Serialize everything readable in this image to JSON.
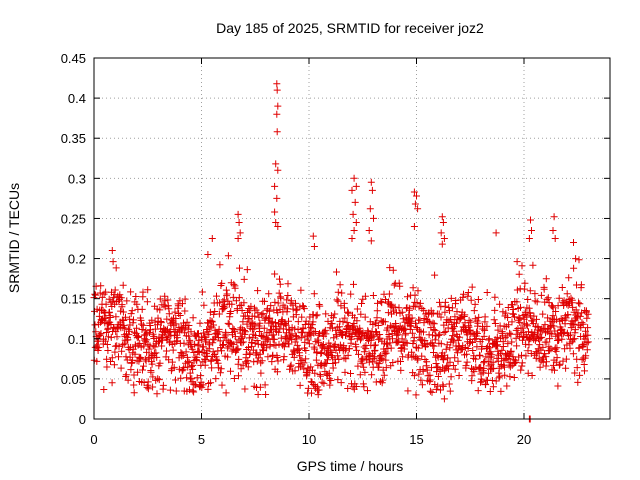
{
  "chart_data": {
    "type": "scatter",
    "title": "Day 185 of 2025, SRMTID for receiver joz2",
    "xlabel": "GPS time / hours",
    "ylabel": "SRMTID / TECUs",
    "xlim": [
      0,
      24
    ],
    "ylim": [
      0,
      0.45
    ],
    "xticks": [
      0,
      5,
      10,
      15,
      20
    ],
    "xtick_labels": [
      "0",
      "5",
      "10",
      "15",
      "20"
    ],
    "yticks": [
      0,
      0.05,
      0.1,
      0.15,
      0.2,
      0.25,
      0.3,
      0.35,
      0.4,
      0.45
    ],
    "ytick_labels": [
      "0",
      "0.05",
      "0.1",
      "0.15",
      "0.2",
      "0.25",
      "0.3",
      "0.35",
      "0.4",
      "0.45"
    ],
    "grid": true,
    "marker": "+",
    "color": "#e00000",
    "baseline": 0.1,
    "spread": 0.03,
    "data_range": [
      0,
      23
    ],
    "high_points": [
      {
        "x": 8.5,
        "y": 0.418
      },
      {
        "x": 8.52,
        "y": 0.41
      },
      {
        "x": 8.55,
        "y": 0.39
      },
      {
        "x": 8.5,
        "y": 0.38
      },
      {
        "x": 8.52,
        "y": 0.358
      },
      {
        "x": 8.45,
        "y": 0.318
      },
      {
        "x": 8.55,
        "y": 0.31
      },
      {
        "x": 8.4,
        "y": 0.29
      },
      {
        "x": 8.5,
        "y": 0.275
      },
      {
        "x": 8.4,
        "y": 0.258
      },
      {
        "x": 8.45,
        "y": 0.245
      },
      {
        "x": 8.55,
        "y": 0.24
      },
      {
        "x": 6.7,
        "y": 0.255
      },
      {
        "x": 6.75,
        "y": 0.245
      },
      {
        "x": 6.8,
        "y": 0.232
      },
      {
        "x": 6.7,
        "y": 0.225
      },
      {
        "x": 5.5,
        "y": 0.225
      },
      {
        "x": 5.3,
        "y": 0.205
      },
      {
        "x": 12.1,
        "y": 0.3
      },
      {
        "x": 12.2,
        "y": 0.29
      },
      {
        "x": 12.0,
        "y": 0.285
      },
      {
        "x": 12.15,
        "y": 0.27
      },
      {
        "x": 12.05,
        "y": 0.255
      },
      {
        "x": 12.2,
        "y": 0.245
      },
      {
        "x": 12.1,
        "y": 0.235
      },
      {
        "x": 12.0,
        "y": 0.225
      },
      {
        "x": 12.9,
        "y": 0.295
      },
      {
        "x": 12.95,
        "y": 0.285
      },
      {
        "x": 12.85,
        "y": 0.262
      },
      {
        "x": 13.0,
        "y": 0.25
      },
      {
        "x": 12.8,
        "y": 0.235
      },
      {
        "x": 12.9,
        "y": 0.222
      },
      {
        "x": 10.2,
        "y": 0.228
      },
      {
        "x": 10.25,
        "y": 0.215
      },
      {
        "x": 14.9,
        "y": 0.283
      },
      {
        "x": 15.0,
        "y": 0.278
      },
      {
        "x": 14.95,
        "y": 0.268
      },
      {
        "x": 15.05,
        "y": 0.262
      },
      {
        "x": 14.9,
        "y": 0.24
      },
      {
        "x": 16.2,
        "y": 0.252
      },
      {
        "x": 16.25,
        "y": 0.245
      },
      {
        "x": 16.15,
        "y": 0.232
      },
      {
        "x": 16.3,
        "y": 0.225
      },
      {
        "x": 16.2,
        "y": 0.218
      },
      {
        "x": 18.7,
        "y": 0.232
      },
      {
        "x": 20.3,
        "y": 0.248
      },
      {
        "x": 20.35,
        "y": 0.235
      },
      {
        "x": 20.25,
        "y": 0.225
      },
      {
        "x": 21.4,
        "y": 0.252
      },
      {
        "x": 21.35,
        "y": 0.235
      },
      {
        "x": 21.45,
        "y": 0.225
      },
      {
        "x": 22.3,
        "y": 0.22
      },
      {
        "x": 22.4,
        "y": 0.2
      },
      {
        "x": 0.85,
        "y": 0.21
      },
      {
        "x": 14.6,
        "y": 0.035
      },
      {
        "x": 16.3,
        "y": 0.025
      },
      {
        "x": 10.4,
        "y": 0.04
      },
      {
        "x": 2.5,
        "y": 0.042
      },
      {
        "x": 4.6,
        "y": 0.035
      },
      {
        "x": 11.8,
        "y": 0.038
      },
      {
        "x": 20.25,
        "y": 0.0
      },
      {
        "x": 20.27,
        "y": 0.0
      },
      {
        "x": 20.29,
        "y": 0.0
      }
    ]
  }
}
